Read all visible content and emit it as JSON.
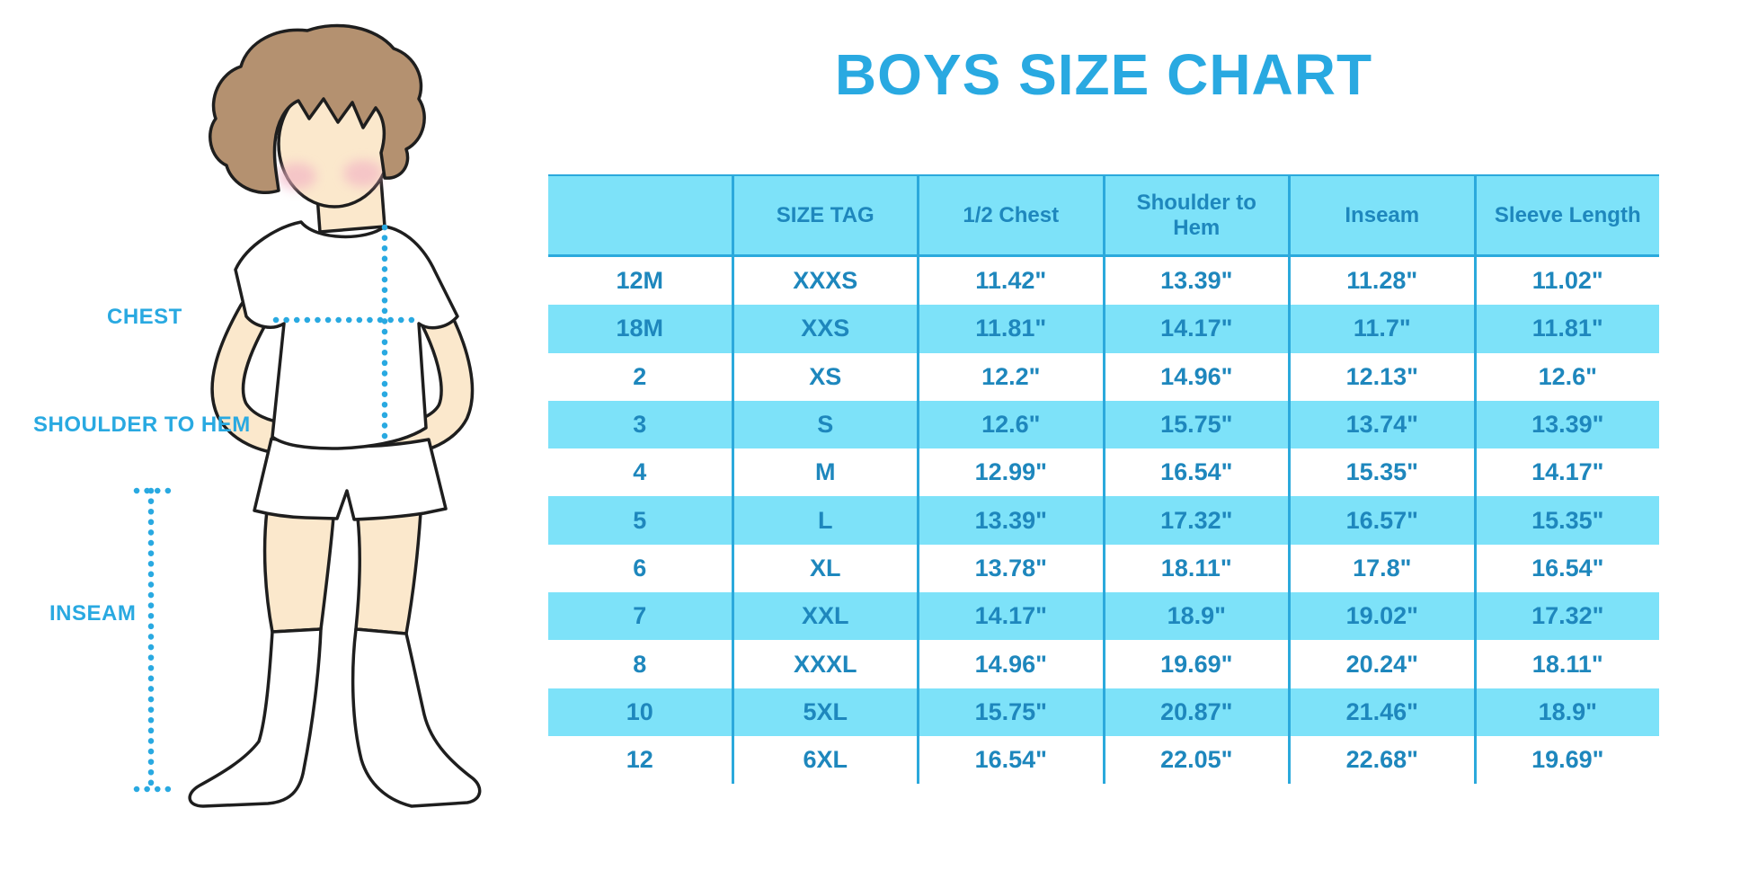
{
  "title": "BOYS SIZE CHART",
  "colors": {
    "accent": "#29A9E1",
    "table_stripe": "#7DE2F9",
    "table_line": "#2BA9DC",
    "table_text": "#1E87BD",
    "skin": "#FBE8CC",
    "hair": "#B49170",
    "cheek": "#F2B3C4",
    "outline": "#1E1E1E"
  },
  "diagram": {
    "chest_label": "CHEST",
    "shoulder_label": "SHOULDER TO HEM",
    "inseam_label": "INSEAM"
  },
  "chart_data": {
    "type": "table",
    "title": "BOYS SIZE CHART",
    "columns": [
      "",
      "SIZE TAG",
      "1/2 Chest",
      "Shoulder to Hem",
      "Inseam",
      "Sleeve Length"
    ],
    "rows": [
      [
        "12M",
        "XXXS",
        "11.42\"",
        "13.39\"",
        "11.28\"",
        "11.02\""
      ],
      [
        "18M",
        "XXS",
        "11.81\"",
        "14.17\"",
        "11.7\"",
        "11.81\""
      ],
      [
        "2",
        "XS",
        "12.2\"",
        "14.96\"",
        "12.13\"",
        "12.6\""
      ],
      [
        "3",
        "S",
        "12.6\"",
        "15.75\"",
        "13.74\"",
        "13.39\""
      ],
      [
        "4",
        "M",
        "12.99\"",
        "16.54\"",
        "15.35\"",
        "14.17\""
      ],
      [
        "5",
        "L",
        "13.39\"",
        "17.32\"",
        "16.57\"",
        "15.35\""
      ],
      [
        "6",
        "XL",
        "13.78\"",
        "18.11\"",
        "17.8\"",
        "16.54\""
      ],
      [
        "7",
        "XXL",
        "14.17\"",
        "18.9\"",
        "19.02\"",
        "17.32\""
      ],
      [
        "8",
        "XXXL",
        "14.96\"",
        "19.69\"",
        "20.24\"",
        "18.11\""
      ],
      [
        "10",
        "5XL",
        "15.75\"",
        "20.87\"",
        "21.46\"",
        "18.9\""
      ],
      [
        "12",
        "6XL",
        "16.54\"",
        "22.05\"",
        "22.68\"",
        "19.69\""
      ]
    ],
    "layout_hints": {
      "striped_rows": true,
      "first_body_row_background": "white",
      "vertical_dividers": true,
      "header_background": "#7DE2F9"
    }
  }
}
